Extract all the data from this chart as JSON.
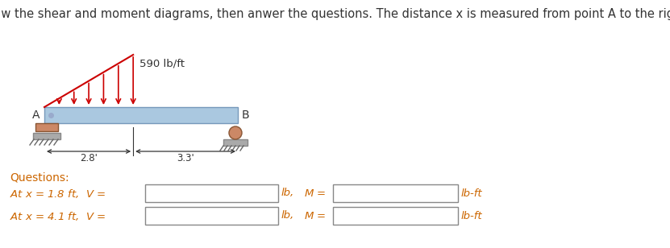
{
  "title": "Draw the shear and moment diagrams, then anwer the questions. The distance x is measured from point A to the right.",
  "title_color": "#333333",
  "title_fontsize": 10.5,
  "beam_color": "#aac8e0",
  "beam_edge_color": "#7799bb",
  "load_color": "#cc0000",
  "load_label": "590 lb/ft",
  "dist1": "2.8'",
  "dist2": "3.3'",
  "questions_label": "Questions:",
  "background_color": "#ffffff",
  "text_color": "#333333",
  "support_pad_color": "#cc8866",
  "support_ground_color": "#888888",
  "orange_text": "#cc6600",
  "q1_text": "At x = 1.8 ft,",
  "q2_text": "At x = 4.1 ft,"
}
